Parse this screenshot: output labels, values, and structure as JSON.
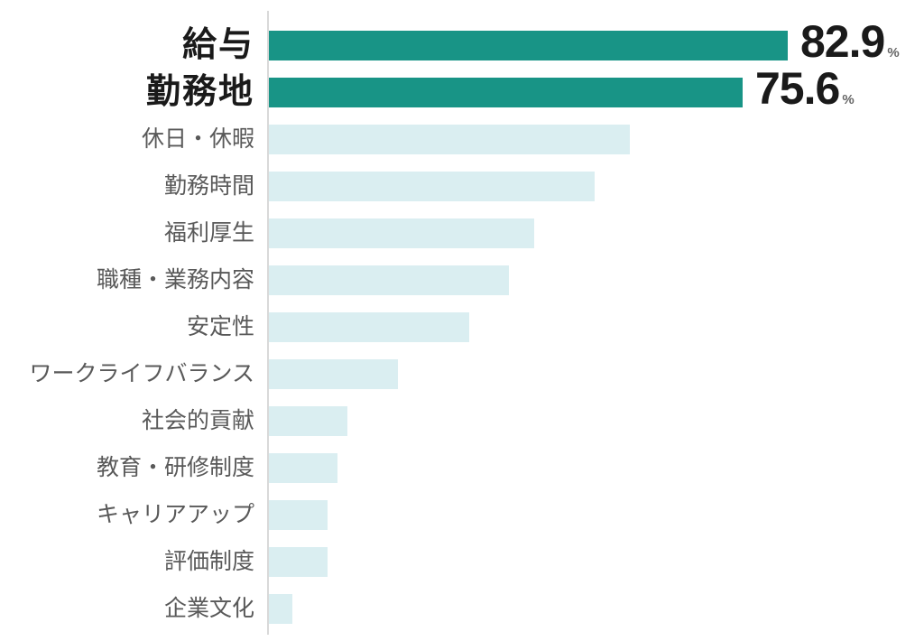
{
  "chart_data": {
    "type": "bar",
    "orientation": "horizontal",
    "title": "",
    "xlabel": "",
    "ylabel": "",
    "grid": false,
    "legend": false,
    "unit": "%",
    "categories": [
      "給与",
      "勤務地",
      "休日・休暇",
      "勤務時間",
      "福利厚生",
      "職種・業務内容",
      "安定性",
      "ワークライフバランス",
      "社会的貢献",
      "教育・研修制度",
      "キャリアアップ",
      "評価制度",
      "企業文化"
    ],
    "values": [
      82.9,
      75.6,
      57.7,
      52.0,
      42.4,
      38.3,
      32.0,
      20.6,
      12.6,
      10.9,
      9.3,
      9.4,
      3.8
    ],
    "value_labels": [
      "82.9",
      "75.6",
      "",
      "",
      "",
      "",
      "",
      "",
      "",
      "",
      "",
      "",
      ""
    ],
    "highlighted": [
      true,
      true,
      false,
      false,
      false,
      false,
      false,
      false,
      false,
      false,
      false,
      false,
      false
    ],
    "xlim": [
      0,
      104.5
    ],
    "colors": {
      "highlight_bar": "#189486",
      "bar": "#daeef1",
      "highlight_label": "#1a1a1a",
      "label": "#595959",
      "value_text": "#1a1a1a",
      "percent_sign": "#666666",
      "axis_line": "#d9d9d9",
      "background": "#ffffff"
    }
  }
}
